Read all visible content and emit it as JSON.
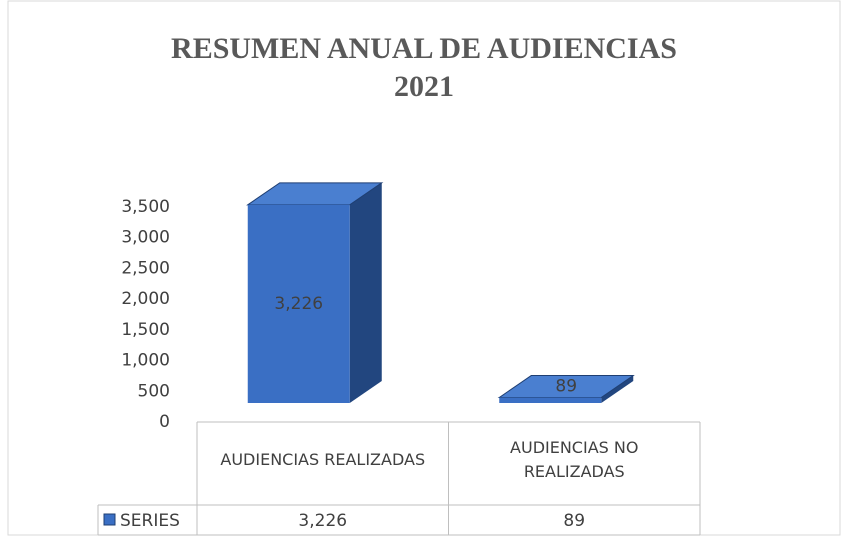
{
  "chart_data": {
    "type": "bar3d",
    "title": "RESUMEN ANUAL DE AUDIENCIAS 2021",
    "categories": [
      "AUDIENCIAS REALIZADAS",
      "AUDIENCIAS NO REALIZADAS"
    ],
    "series": [
      {
        "name": "SERIES",
        "color": "#3a6fc4",
        "values": [
          3226,
          89
        ],
        "value_labels": [
          "3,226",
          "89"
        ]
      }
    ],
    "ylim": [
      0,
      3500
    ],
    "yticks": [
      0,
      500,
      {
        "value": 1000,
        "label": "1,000"
      },
      {
        "value": 1500,
        "label": "1,500"
      },
      {
        "value": 2000,
        "label": "2,000"
      },
      {
        "value": 2500,
        "label": "2,500"
      },
      {
        "value": 3000,
        "label": "3,000"
      },
      {
        "value": 3500,
        "label": "3,500"
      }
    ],
    "data_table": true
  }
}
